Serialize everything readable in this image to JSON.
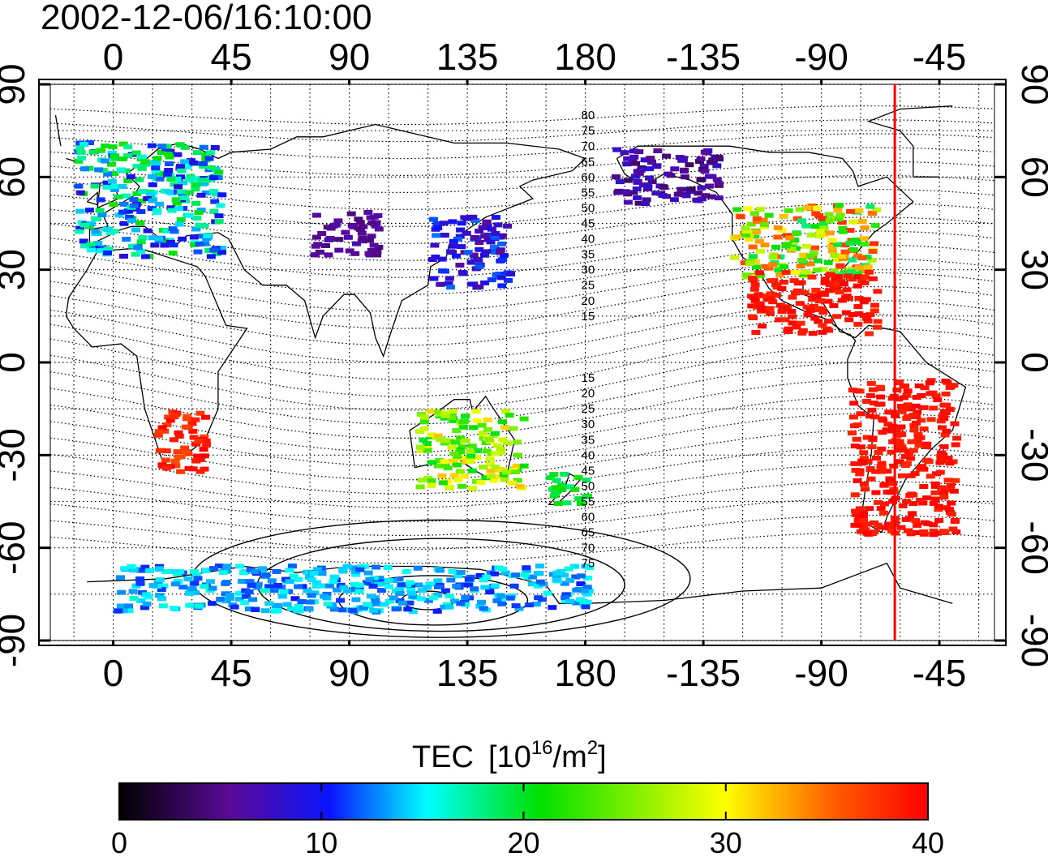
{
  "header": {
    "timestamp": "2002-12-06/16:10:00"
  },
  "map": {
    "lon_ticks_top": [
      "0",
      "45",
      "90",
      "135",
      "180",
      "-135",
      "-90",
      "-45"
    ],
    "lon_ticks_bottom": [
      "0",
      "45",
      "90",
      "135",
      "180",
      "-135",
      "-90",
      "-45"
    ],
    "lon_tick_values": [
      0,
      45,
      90,
      135,
      180,
      225,
      270,
      315
    ],
    "lat_ticks_left": [
      "90",
      "60",
      "30",
      "0",
      "-30",
      "-60",
      "-90"
    ],
    "lat_ticks_right": [
      "90",
      "60",
      "30",
      "0",
      "-30",
      "-60",
      "-90"
    ],
    "lat_tick_values": [
      90,
      60,
      30,
      0,
      -30,
      -60,
      -90
    ],
    "lon_range": [
      -24,
      336
    ],
    "lat_range": [
      -90,
      90
    ],
    "grid": "dotted",
    "terminator_longitude": -62,
    "terminator_color": "#ff0000",
    "contour_labels_north": [
      "80",
      "75",
      "70",
      "65",
      "60",
      "55",
      "50",
      "45",
      "40",
      "35",
      "30",
      "25",
      "20",
      "15"
    ],
    "contour_labels_north_lat": [
      80,
      75,
      70,
      65,
      60,
      55,
      50,
      45,
      40,
      35,
      30,
      25,
      20,
      15
    ],
    "contour_labels_south": [
      "15",
      "20",
      "25",
      "30",
      "35",
      "40",
      "45",
      "50",
      "55",
      "60",
      "65",
      "70",
      "75"
    ],
    "contour_labels_south_lat": [
      -5,
      -10,
      -15,
      -20,
      -25,
      -30,
      -35,
      -40,
      -45,
      -50,
      -55,
      -60,
      -65
    ]
  },
  "colorbar": {
    "title": "TEC",
    "unit_base": "[10",
    "unit_exp": "16",
    "unit_mid": "/m",
    "unit_exp2": "2",
    "unit_close": "]",
    "ticks": [
      "0",
      "10",
      "20",
      "30",
      "40"
    ],
    "range": [
      0,
      40
    ],
    "colors": [
      "#000000",
      "#5a0a9a",
      "#0a14ff",
      "#00ffff",
      "#00e000",
      "#ffff00",
      "#ff2000",
      "#ff0000"
    ]
  },
  "chart_data": {
    "type": "heatmap",
    "title": "2002-12-06/16:10:00",
    "xlabel": "",
    "ylabel": "",
    "xlim": [
      -24,
      336
    ],
    "ylim": [
      -90,
      90
    ],
    "value_range": [
      0,
      40
    ],
    "regions": [
      {
        "lon": [
          -15,
          40
        ],
        "lat": [
          35,
          72
        ],
        "tec": [
          8,
          22
        ]
      },
      {
        "lon": [
          75,
          100
        ],
        "lat": [
          35,
          50
        ],
        "tec": [
          4,
          6
        ]
      },
      {
        "lon": [
          120,
          150
        ],
        "lat": [
          25,
          48
        ],
        "tec": [
          5,
          12
        ]
      },
      {
        "lon": [
          190,
          230
        ],
        "lat": [
          52,
          70
        ],
        "tec": [
          3,
          8
        ]
      },
      {
        "lon": [
          235,
          290
        ],
        "lat": [
          28,
          52
        ],
        "tec": [
          18,
          38
        ]
      },
      {
        "lon": [
          240,
          290
        ],
        "lat": [
          10,
          30
        ],
        "tec": [
          38,
          40
        ]
      },
      {
        "lon": [
          280,
          320
        ],
        "lat": [
          -55,
          -5
        ],
        "tec": [
          38,
          40
        ]
      },
      {
        "lon": [
          15,
          35
        ],
        "lat": [
          -35,
          -15
        ],
        "tec": [
          36,
          40
        ]
      },
      {
        "lon": [
          115,
          155
        ],
        "lat": [
          -40,
          -15
        ],
        "tec": [
          20,
          32
        ]
      },
      {
        "lon": [
          165,
          180
        ],
        "lat": [
          -45,
          -35
        ],
        "tec": [
          18,
          22
        ]
      },
      {
        "lon": [
          0,
          180
        ],
        "lat": [
          -80,
          -65
        ],
        "tec": [
          10,
          16
        ]
      }
    ]
  }
}
